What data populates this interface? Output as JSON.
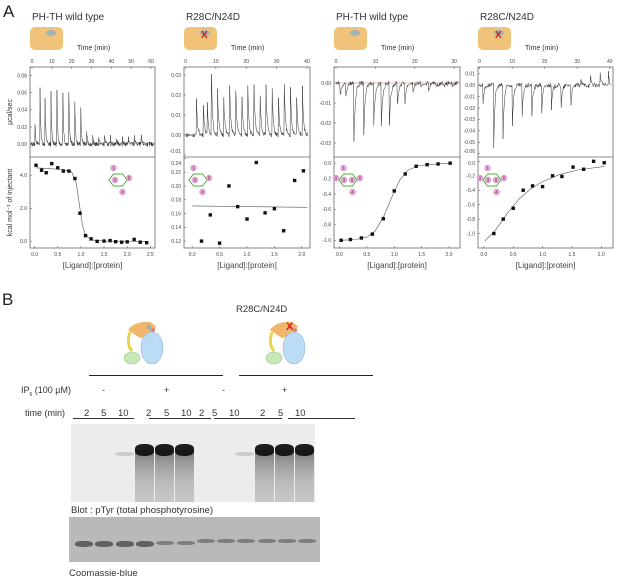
{
  "panel_labels": {
    "a": "A",
    "b": "B"
  },
  "chart_data": [
    {
      "type": "scatter",
      "title": "PH-TH wild type",
      "mutant": false,
      "top": {
        "type": "line",
        "xlabel": "Time (min)",
        "ylabel": "µcal/sec",
        "xlim": [
          -1,
          62
        ],
        "ylim": [
          -0.015,
          0.09
        ],
        "xticks": [
          0,
          10,
          20,
          30,
          40,
          50,
          60
        ],
        "yticks": [
          0.0,
          0.02,
          0.04,
          0.06,
          0.08
        ],
        "ytick_labels": [
          "0.00",
          "0.02",
          "0.04",
          "0.06",
          "0.08"
        ],
        "injection_min": [
          1.5,
          4,
          6.5,
          9.5,
          12.5,
          15.5,
          18.5,
          21.5,
          24.5,
          27.5,
          30.5,
          33.5,
          36.5,
          39.5,
          42.5,
          45.5,
          48.5,
          51.5,
          55
        ],
        "peak_ucal_s": [
          0.027,
          0.08,
          0.068,
          0.075,
          0.078,
          0.077,
          0.078,
          0.065,
          0.055,
          0.018,
          0.01,
          0.012,
          0.012,
          0.01,
          0.01,
          0.011,
          0.012,
          0.012,
          0.012
        ]
      },
      "bottom": {
        "xlabel": "[Ligand]:[protein]",
        "ylabel": "kcal mol⁻¹ of injectant",
        "xlim": [
          -0.1,
          2.6
        ],
        "ylim": [
          -0.4,
          5.1
        ],
        "xticks": [
          0.0,
          0.5,
          1.0,
          1.5,
          2.0,
          2.5
        ],
        "xtick_labels": [
          "0.0",
          "0.5",
          "1.0",
          "1.5",
          "2.0",
          "2.5"
        ],
        "yticks": [
          0,
          2,
          4
        ],
        "ytick_labels": [
          "0.0",
          "2.0",
          "4.0"
        ],
        "x": [
          0.03,
          0.15,
          0.25,
          0.37,
          0.5,
          0.62,
          0.74,
          0.87,
          0.98,
          1.1,
          1.22,
          1.35,
          1.5,
          1.63,
          1.75,
          1.88,
          2.0,
          2.15,
          2.28,
          2.42
        ],
        "y": [
          4.6,
          4.3,
          4.15,
          4.7,
          4.45,
          4.25,
          4.25,
          3.8,
          1.7,
          0.35,
          0.15,
          0.0,
          0.02,
          0.05,
          -0.02,
          -0.05,
          -0.03,
          0.12,
          -0.05,
          -0.08
        ],
        "fit": [
          [
            0.03,
            4.45
          ],
          [
            0.6,
            4.35
          ],
          [
            0.8,
            4.2
          ],
          [
            0.9,
            3.5
          ],
          [
            0.97,
            2.2
          ],
          [
            1.03,
            1.0
          ],
          [
            1.1,
            0.35
          ],
          [
            1.25,
            0.08
          ],
          [
            1.5,
            0.02
          ],
          [
            2.45,
            0.0
          ]
        ]
      },
      "ligand_sites": [
        "1",
        "3",
        "4",
        "5"
      ]
    },
    {
      "type": "scatter",
      "title": "R28C/N24D",
      "mutant": true,
      "top": {
        "type": "line",
        "xlabel": "Time (min)",
        "ylabel": "",
        "xlim": [
          -0.5,
          41
        ],
        "ylim": [
          -0.011,
          0.034
        ],
        "xticks": [
          0,
          10,
          20,
          30,
          40
        ],
        "yticks": [
          -0.01,
          0.0,
          0.01,
          0.02,
          0.03
        ],
        "ytick_labels": [
          "-0.01",
          "0.00",
          "0.01",
          "0.02",
          "0.03"
        ],
        "injection_min": [
          3.5,
          5.8,
          7.2,
          8.5,
          10.5,
          12.5,
          14.5,
          16.5,
          18.5,
          20.5,
          22.5,
          24.5,
          26.5,
          28.5,
          30.5,
          32.5,
          34.5,
          36.5,
          38.5
        ],
        "peak_ucal_s": [
          0.023,
          0.02,
          0.015,
          0.033,
          0.027,
          0.025,
          0.027,
          0.027,
          0.025,
          0.026,
          0.03,
          0.027,
          0.026,
          0.027,
          0.025,
          0.027,
          0.027,
          0.026,
          0.025
        ]
      },
      "bottom": {
        "xlabel": "[Ligand]:[protein]",
        "ylabel": "",
        "xlim": [
          -0.15,
          2.15
        ],
        "ylim": [
          0.11,
          0.242
        ],
        "xticks": [
          0.0,
          0.5,
          1.0,
          1.5,
          2.0
        ],
        "xtick_labels": [
          "0.0",
          "0.5",
          "1.0",
          "1.5",
          "2.0"
        ],
        "yticks": [
          0.12,
          0.14,
          0.16,
          0.18,
          0.2,
          0.22,
          0.24
        ],
        "ytick_labels": [
          "0.12",
          "0.14",
          "0.16",
          "0.18",
          "0.20",
          "0.22",
          "0.24"
        ],
        "x": [
          0.17,
          0.33,
          0.5,
          0.67,
          0.83,
          1.0,
          1.17,
          1.33,
          1.5,
          1.67,
          1.87,
          2.03
        ],
        "y": [
          0.12,
          0.158,
          0.117,
          0.2,
          0.17,
          0.152,
          0.234,
          0.161,
          0.167,
          0.135,
          0.208,
          0.222
        ],
        "fit": [
          [
            0.0,
            0.171
          ],
          [
            2.1,
            0.169
          ]
        ]
      },
      "ligand_sites": [
        "1",
        "3",
        "4",
        "5"
      ]
    },
    {
      "type": "scatter",
      "title": "PH-TH wild type",
      "mutant": false,
      "top": {
        "type": "line",
        "xlabel": "Time (min)",
        "ylabel": "",
        "xlim": [
          -0.5,
          31.5
        ],
        "ylim": [
          -0.037,
          0.008
        ],
        "xticks": [
          0,
          10,
          20,
          30
        ],
        "yticks": [
          -0.03,
          -0.02,
          -0.01,
          0.0
        ],
        "ytick_labels": [
          "-0.03",
          "-0.02",
          "-0.01",
          "0.00"
        ],
        "injection_min": [
          1,
          2.5,
          4.5,
          7,
          9.5,
          11.5,
          13.5,
          15.5,
          17.5,
          19.5,
          21.5,
          23.5,
          25.5,
          27.5,
          29.5
        ],
        "peak_ucal_s": [
          -0.008,
          -0.007,
          -0.034,
          -0.032,
          -0.028,
          -0.022,
          -0.025,
          -0.014,
          -0.01,
          -0.006,
          -0.004,
          -0.004,
          -0.003,
          -0.003,
          -0.003
        ]
      },
      "bottom": {
        "xlabel": "[Ligand]:[protein]",
        "ylabel": "",
        "xlim": [
          -0.1,
          2.2
        ],
        "ylim": [
          -1.1,
          0.08
        ],
        "xticks": [
          0.0,
          0.5,
          1.0,
          1.5,
          2.0
        ],
        "xtick_labels": [
          "0.0",
          "0.5",
          "1.0",
          "1.5",
          "2.0"
        ],
        "yticks": [
          -1.0,
          -0.8,
          -0.6,
          -0.4,
          -0.2,
          0.0
        ],
        "ytick_labels": [
          "-1.0",
          "-0.8",
          "-0.6",
          "-0.4",
          "-0.2",
          "0.0"
        ],
        "x": [
          0.03,
          0.2,
          0.4,
          0.6,
          0.8,
          1.0,
          1.2,
          1.4,
          1.6,
          1.8,
          2.02
        ],
        "y": [
          -1.0,
          -0.99,
          -0.97,
          -0.92,
          -0.72,
          -0.36,
          -0.14,
          -0.04,
          -0.02,
          -0.01,
          0.0
        ],
        "fit": [
          [
            0.03,
            -1.0
          ],
          [
            0.3,
            -0.99
          ],
          [
            0.5,
            -0.96
          ],
          [
            0.65,
            -0.88
          ],
          [
            0.8,
            -0.7
          ],
          [
            0.95,
            -0.45
          ],
          [
            1.1,
            -0.22
          ],
          [
            1.25,
            -0.09
          ],
          [
            1.45,
            -0.03
          ],
          [
            1.8,
            -0.01
          ],
          [
            2.05,
            0.0
          ]
        ]
      },
      "ligand_sites": [
        "1",
        "2",
        "3",
        "6",
        "5",
        "4"
      ]
    },
    {
      "type": "scatter",
      "title": "R28C/N24D",
      "mutant": true,
      "top": {
        "type": "line",
        "xlabel": "Time (min)",
        "ylabel": "",
        "xlim": [
          -0.5,
          41
        ],
        "ylim": [
          -0.063,
          0.016
        ],
        "xticks": [
          0,
          10,
          20,
          30,
          40
        ],
        "yticks": [
          -0.06,
          -0.05,
          -0.04,
          -0.03,
          -0.02,
          -0.01,
          0.0,
          0.01
        ],
        "ytick_labels": [
          "-0.06",
          "-0.05",
          "-0.04",
          "-0.03",
          "-0.02",
          "-0.01",
          "0.00",
          "0.01"
        ],
        "injection_min": [
          1,
          4.3,
          7.2,
          10,
          13,
          16,
          19,
          22,
          25,
          28,
          31,
          34,
          37,
          39.5
        ],
        "peak_ucal_s": [
          -0.018,
          -0.057,
          -0.048,
          -0.043,
          -0.034,
          -0.032,
          -0.03,
          -0.027,
          -0.024,
          -0.02,
          0.006,
          0.009,
          0.012,
          0.014
        ]
      },
      "bottom": {
        "xlabel": "[Ligand]:[protein]",
        "ylabel": "",
        "xlim": [
          -0.1,
          2.2
        ],
        "ylim": [
          -1.2,
          0.06
        ],
        "xticks": [
          0.0,
          0.5,
          1.0,
          1.5,
          2.0
        ],
        "xtick_labels": [
          "0.0",
          "0.5",
          "1.0",
          "1.5",
          "2.0"
        ],
        "yticks": [
          -1.0,
          -0.8,
          -0.6,
          -0.4,
          -0.2,
          0.0
        ],
        "ytick_labels": [
          "-1.0",
          "-0.8",
          "-0.6",
          "-0.4",
          "-0.2",
          "0.0"
        ],
        "x": [
          0.17,
          0.33,
          0.5,
          0.67,
          0.83,
          1.0,
          1.17,
          1.33,
          1.52,
          1.7,
          1.87,
          2.05
        ],
        "y": [
          -1.0,
          -0.8,
          -0.65,
          -0.4,
          -0.34,
          -0.35,
          -0.2,
          -0.21,
          -0.08,
          -0.11,
          0.0,
          -0.02
        ],
        "fit": [
          [
            0.02,
            -1.1
          ],
          [
            0.2,
            -0.95
          ],
          [
            0.4,
            -0.72
          ],
          [
            0.6,
            -0.52
          ],
          [
            0.8,
            -0.38
          ],
          [
            1.0,
            -0.28
          ],
          [
            1.3,
            -0.18
          ],
          [
            1.6,
            -0.12
          ],
          [
            2.05,
            -0.07
          ]
        ]
      },
      "ligand_sites": [
        "1",
        "2",
        "3",
        "6",
        "5",
        "4"
      ]
    }
  ],
  "panel_b": {
    "mutant_label": "R28C/N24D",
    "ip6_label": "IP",
    "ip6_sub": "6",
    "ip6_conc": " (100 µM)",
    "ip6_states": [
      "-",
      "+",
      "-",
      "+"
    ],
    "time_label": "time (min)",
    "time_points": [
      "2",
      "5",
      "10",
      "2",
      "5",
      "10",
      "2",
      "5",
      "10",
      "2",
      "5",
      "10"
    ],
    "blot_label": "Blot : pTyr (total phosphotyrosine)",
    "gel_label": "Coomassie-blue"
  },
  "colors": {
    "domain_orange": "#f0c27a",
    "site_gray": "#9fb2b5",
    "mutation_red": "#d7191c",
    "ligand_green": "#4caf3c",
    "site_pink": "#e8a5d6"
  }
}
